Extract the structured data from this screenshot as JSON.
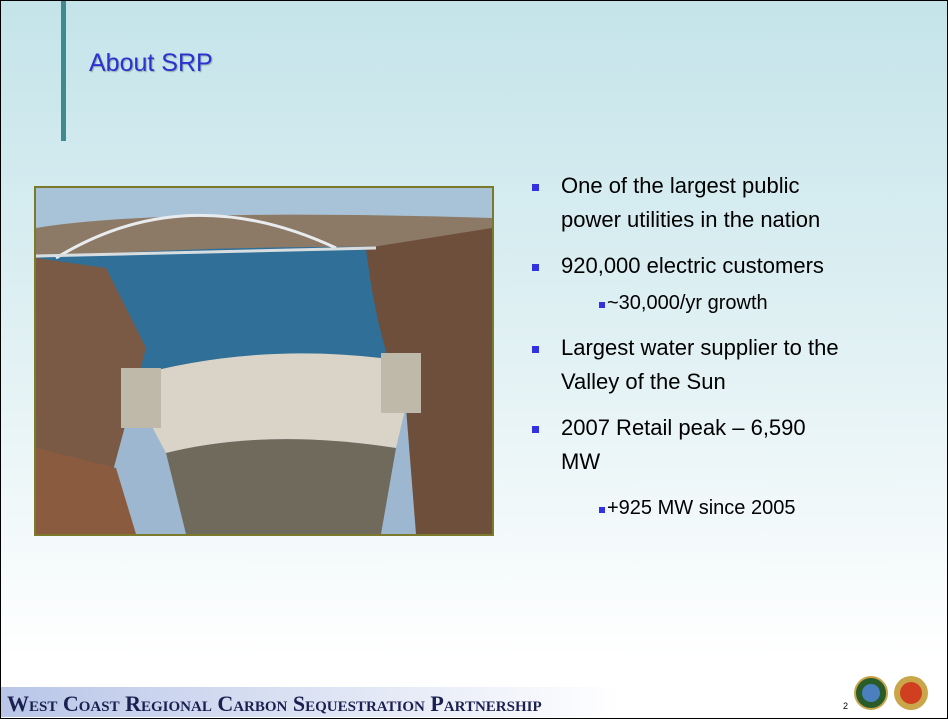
{
  "slide": {
    "title": "About SRP",
    "bullets": [
      {
        "lines": [
          "One of the largest public",
          "power utilities in the nation"
        ]
      },
      {
        "lines": [
          "920,000 electric customers"
        ],
        "sub": [
          "~30,000/yr growth"
        ]
      },
      {
        "lines": [
          "Largest water supplier to the",
          "Valley of the Sun"
        ]
      },
      {
        "lines": [
          "2007 Retail peak – 6,590",
          "MW"
        ],
        "sub": [
          "+925 MW since 2005"
        ]
      }
    ],
    "footer": "West Coast Regional Carbon Sequestration Partnership",
    "page_number": "2"
  }
}
